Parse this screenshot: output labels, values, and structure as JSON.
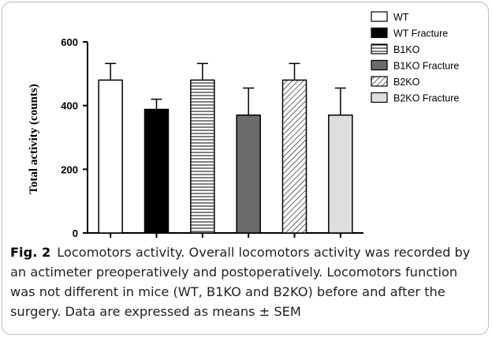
{
  "chart_data": {
    "type": "bar",
    "title": "",
    "ylabel": "Total activity (counts)",
    "xlabel": "",
    "ylim": [
      0,
      600
    ],
    "yticks": [
      0,
      200,
      400,
      600
    ],
    "grid": false,
    "legend_position": "top-right",
    "series": [
      {
        "name": "WT",
        "value": 480,
        "error": 52,
        "pattern": "white"
      },
      {
        "name": "WT Fracture",
        "value": 388,
        "error": 32,
        "pattern": "black"
      },
      {
        "name": "B1KO",
        "value": 480,
        "error": 52,
        "pattern": "horizontal-stripes"
      },
      {
        "name": "B1KO Fracture",
        "value": 370,
        "error": 85,
        "pattern": "dark-gray"
      },
      {
        "name": "B2KO",
        "value": 480,
        "error": 52,
        "pattern": "diagonal-hatch"
      },
      {
        "name": "B2KO Fracture",
        "value": 370,
        "error": 85,
        "pattern": "light-gray"
      }
    ]
  },
  "caption": {
    "figure_label": "Fig. 2",
    "text": "Locomotors activity. Overall locomotors activity was recorded by an actimeter preoperatively and postoperatively. Locomotors function was not different in mice (WT, B1KO and B2KO) before and after the surgery. Data are expressed as means ± SEM"
  }
}
